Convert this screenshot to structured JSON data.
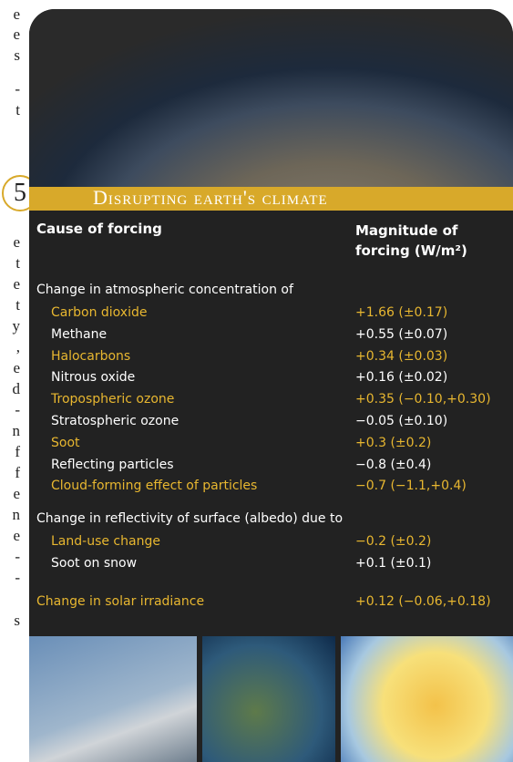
{
  "margin_fragments": [
    "e",
    "e",
    "s",
    "-",
    "t",
    "e",
    "t",
    "e",
    "t",
    "y",
    ",",
    "e",
    "d",
    "-",
    "n",
    "f",
    "f",
    "e",
    "n",
    "e",
    "-",
    "-",
    "s"
  ],
  "header": {
    "number": "5",
    "title": "Disrupting earth's climate"
  },
  "table": {
    "columns": [
      "Cause of forcing",
      "Magnitude of forcing (W/m²)"
    ],
    "sections": [
      {
        "heading": "Change in atmospheric concentration of",
        "rows": [
          [
            "Carbon dioxide",
            "+1.66 (±0.17)"
          ],
          [
            "Methane",
            "+0.55 (±0.07)"
          ],
          [
            "Halocarbons",
            "+0.34 (±0.03)"
          ],
          [
            "Nitrous oxide",
            "+0.16 (±0.02)"
          ],
          [
            "Tropospheric ozone",
            "+0.35 (−0.10,+0.30)"
          ],
          [
            "Stratospheric ozone",
            "−0.05 (±0.10)"
          ],
          [
            "Soot",
            "+0.3 (±0.2)"
          ],
          [
            "Reflecting particles",
            "−0.8 (±0.4)"
          ],
          [
            "Cloud-forming effect of particles",
            "−0.7 (−1.1,+0.4)"
          ]
        ]
      },
      {
        "heading": "Change in reflectivity of surface (albedo) due to",
        "rows": [
          [
            "Land-use change",
            "−0.2 (±0.2)"
          ],
          [
            "Soot on snow",
            "+0.1 (±0.1)"
          ]
        ]
      }
    ],
    "footer_row": [
      "Change in solar irradiance",
      "+0.12 (−0.06,+0.18)"
    ]
  }
}
